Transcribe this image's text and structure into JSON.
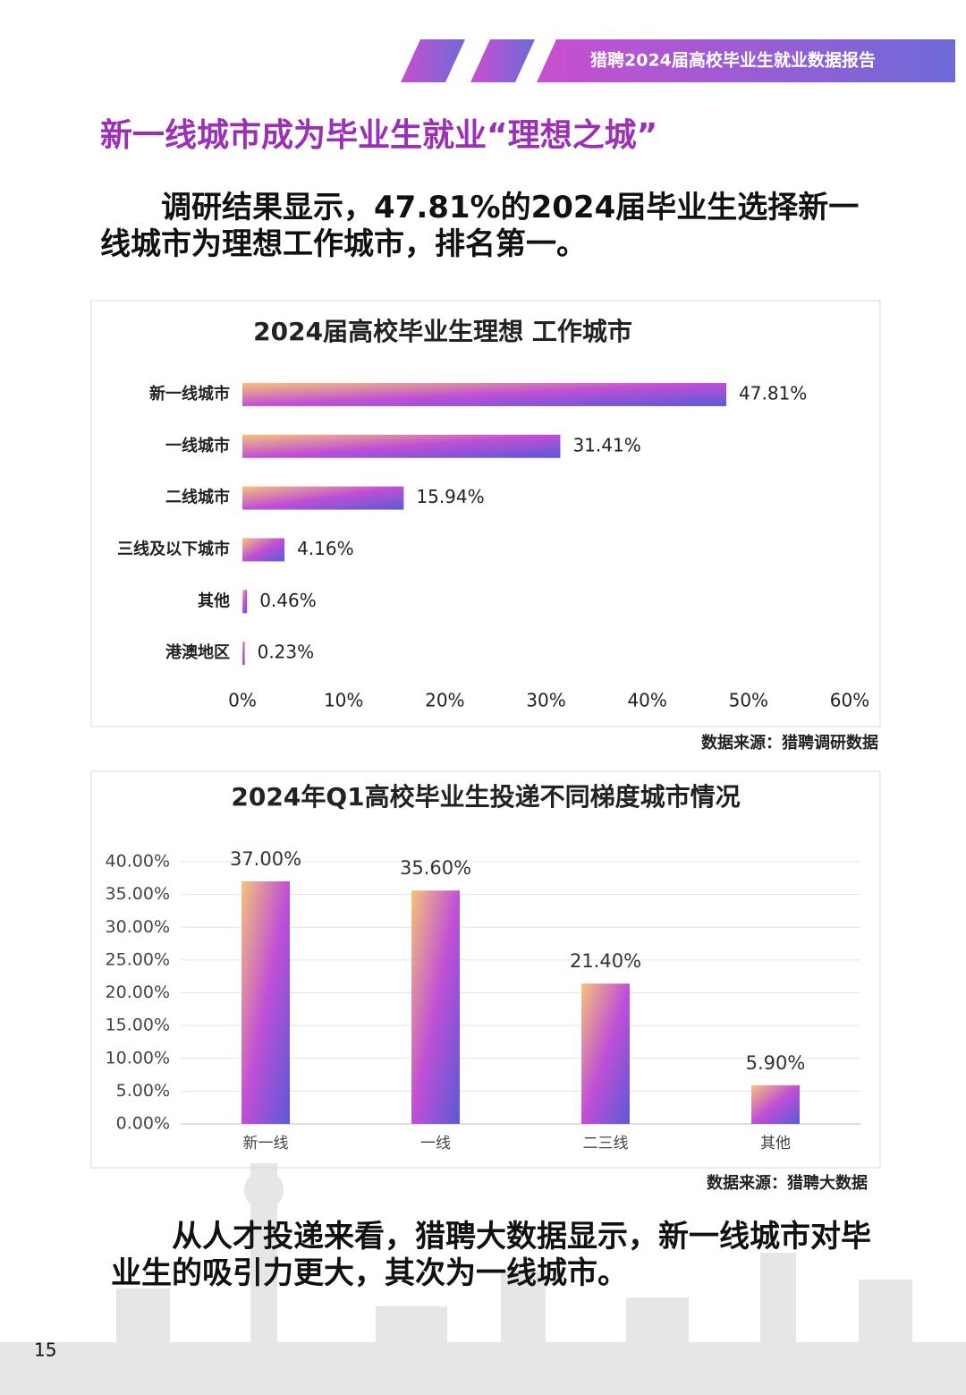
{
  "header": {
    "title": "猎聘2024届高校毕业生就业数据报告"
  },
  "heading": "新一线城市成为毕业生就业“理想之城”",
  "paragraph1": "调研结果显示，47.81%的2024届毕业生选择新一线城市为理想工作城市，排名第一。",
  "paragraph2": "从人才投递来看，猎聘大数据显示，新一线城市对毕业生的吸引力更大，其次为一线城市。",
  "page_number": "15",
  "chart_data": [
    {
      "type": "bar",
      "orientation": "horizontal",
      "title": "2024届高校毕业生理想 工作城市",
      "categories": [
        "新一线城市",
        "一线城市",
        "二线城市",
        "三线及以下城市",
        "其他",
        "港澳地区"
      ],
      "values": [
        47.81,
        31.41,
        15.94,
        4.16,
        0.46,
        0.23
      ],
      "value_labels": [
        "47.81%",
        "31.41%",
        "15.94%",
        "4.16%",
        "0.46%",
        "0.23%"
      ],
      "colors": [
        "#f6c27a",
        "#c04fd6",
        "#5a5ad6"
      ],
      "xlim": [
        0,
        60
      ],
      "xticks": [
        {
          "value": 0,
          "label": "0%"
        },
        {
          "value": 10,
          "label": "10%"
        },
        {
          "value": 20,
          "label": "20%"
        },
        {
          "value": 30,
          "label": "30%"
        },
        {
          "value": 40,
          "label": "40%"
        },
        {
          "value": 50,
          "label": "50%"
        },
        {
          "value": 60,
          "label": "60%"
        }
      ],
      "grid": false,
      "source": "数据来源：猎聘调研数据"
    },
    {
      "type": "bar",
      "orientation": "vertical",
      "title": "2024年Q1高校毕业生投递不同梯度城市情况",
      "categories": [
        "新一线",
        "一线",
        "二三线",
        "其他"
      ],
      "values": [
        37.0,
        35.6,
        21.4,
        5.9
      ],
      "value_labels": [
        "37.00%",
        "35.60%",
        "21.40%",
        "5.90%"
      ],
      "colors": [
        "#f6c27a",
        "#c04fd6",
        "#5a5ad6"
      ],
      "ylim": [
        0,
        40
      ],
      "yticks": [
        {
          "value": 0,
          "label": "0.00%"
        },
        {
          "value": 5,
          "label": "5.00%"
        },
        {
          "value": 10,
          "label": "10.00%"
        },
        {
          "value": 15,
          "label": "15.00%"
        },
        {
          "value": 20,
          "label": "20.00%"
        },
        {
          "value": 25,
          "label": "25.00%"
        },
        {
          "value": 30,
          "label": "30.00%"
        },
        {
          "value": 35,
          "label": "35.00%"
        },
        {
          "value": 40,
          "label": "40.00%"
        }
      ],
      "grid": true,
      "source": "数据来源：猎聘大数据"
    }
  ]
}
